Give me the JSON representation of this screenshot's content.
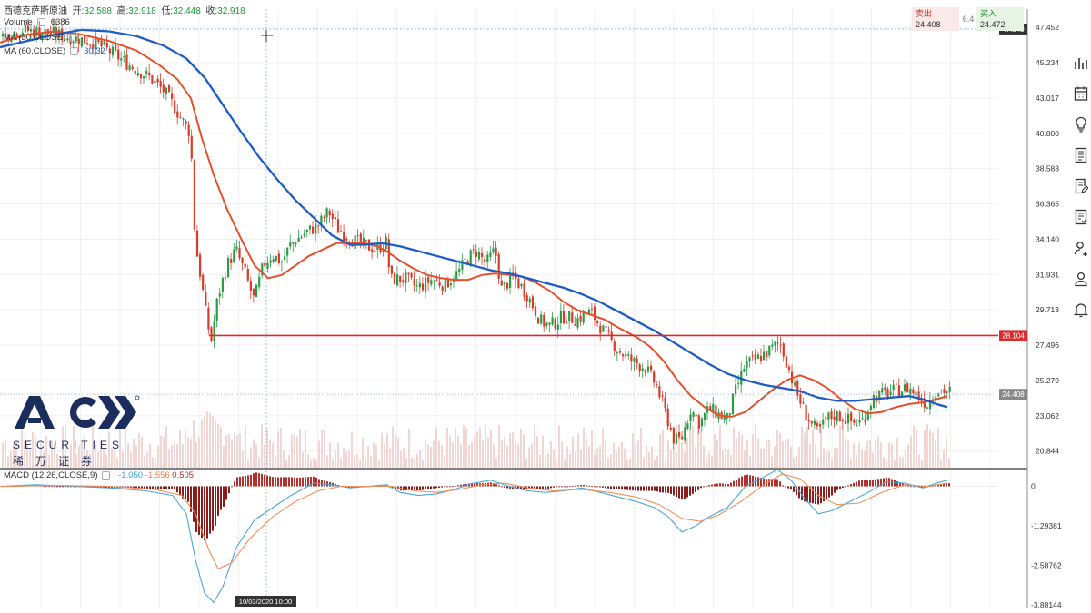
{
  "instrument": {
    "name": "西德克萨斯原油",
    "open_label": "开:",
    "open": "32.588",
    "high_label": "高:",
    "high": "32.918",
    "low_label": "低:",
    "low": "32.448",
    "close_label": "收:",
    "close": "32.918"
  },
  "legends": {
    "volume_label": "Volume",
    "volume_value": "6386",
    "ma1_label": "MA (30,CLOSE)",
    "ma1_value": "",
    "ma2_label": "MA (60,CLOSE)",
    "ma2_value": "30.32",
    "macd_label": "MACD (12,26,CLOSE,9)",
    "macd_v1": "-1.050",
    "macd_v2": "-1.556",
    "macd_v3": "0.505"
  },
  "trade": {
    "sell_label": "卖出",
    "sell_price": "24.408",
    "spread": "6.4",
    "buy_label": "买入",
    "buy_price": "24.472"
  },
  "logo": {
    "brand": "ACY",
    "securities": "SECURITIES",
    "chinese": "稀万证券"
  },
  "toolbar": [
    "bar-chart-icon",
    "calendar-icon",
    "lightbulb-icon",
    "document-icon",
    "edit-document-icon",
    "checklist-icon",
    "user-settings-icon",
    "user-icon",
    "bell-icon"
  ],
  "colors": {
    "up": "#2a9d43",
    "down": "#d93a2a",
    "ma_fast": "#e4502b",
    "ma_slow": "#1c5cc4",
    "support": "#d92b2b",
    "macd_fast": "#4aa6d9",
    "macd_slow": "#f0905a",
    "hist_up": "#b5302a",
    "hist_down": "#8c1c1c",
    "volume": "#f1d6d4"
  },
  "chart_data": {
    "type": "candlestick",
    "price_axis_ticks": [
      "47.452",
      "45.234",
      "43.017",
      "40.800",
      "38.583",
      "36.365",
      "34.140",
      "31.931",
      "29.713",
      "27.496",
      "25.279",
      "23.062",
      "20.844"
    ],
    "price_range": [
      19.8,
      48.6
    ],
    "crosshair_price": "47.349",
    "crosshair_time": "10/03/2020  10:00",
    "support_level": 28.104,
    "support_label": "28.104",
    "current_price": 24.408,
    "current_label": "24.408",
    "macd_axis_ticks": [
      "0",
      "-1.29381",
      "-2.58762",
      "-3.88144"
    ],
    "macd_range": [
      -4.0,
      0.55
    ],
    "price_path": [
      [
        0,
        46.9
      ],
      [
        25,
        47.3
      ],
      [
        55,
        47.1
      ],
      [
        80,
        46.8
      ],
      [
        105,
        46.5
      ],
      [
        125,
        45.8
      ],
      [
        145,
        45.0
      ],
      [
        165,
        44.3
      ],
      [
        180,
        43.5
      ],
      [
        192,
        42.5
      ],
      [
        202,
        41.5
      ],
      [
        210,
        40.8
      ],
      [
        215,
        34.0
      ],
      [
        222,
        31.5
      ],
      [
        228,
        29.0
      ],
      [
        233,
        27.8
      ],
      [
        240,
        30.5
      ],
      [
        250,
        32.5
      ],
      [
        260,
        33.5
      ],
      [
        270,
        32.0
      ],
      [
        280,
        30.3
      ],
      [
        290,
        32.5
      ],
      [
        300,
        33.2
      ],
      [
        310,
        32.7
      ],
      [
        320,
        33.8
      ],
      [
        335,
        34.5
      ],
      [
        350,
        35.0
      ],
      [
        362,
        35.9
      ],
      [
        372,
        34.8
      ],
      [
        385,
        34.2
      ],
      [
        400,
        33.8
      ],
      [
        415,
        33.5
      ],
      [
        425,
        34.0
      ],
      [
        430,
        31.6
      ],
      [
        445,
        31.7
      ],
      [
        460,
        31.1
      ],
      [
        475,
        31.6
      ],
      [
        490,
        31.3
      ],
      [
        505,
        32.1
      ],
      [
        515,
        33.0
      ],
      [
        525,
        33.4
      ],
      [
        535,
        32.6
      ],
      [
        545,
        33.5
      ],
      [
        552,
        31.0
      ],
      [
        565,
        31.8
      ],
      [
        580,
        30.7
      ],
      [
        595,
        29.0
      ],
      [
        605,
        28.7
      ],
      [
        620,
        29.3
      ],
      [
        635,
        29.1
      ],
      [
        650,
        29.6
      ],
      [
        665,
        28.3
      ],
      [
        680,
        27.2
      ],
      [
        695,
        26.5
      ],
      [
        710,
        26.1
      ],
      [
        722,
        25.0
      ],
      [
        732,
        23.3
      ],
      [
        742,
        21.5
      ],
      [
        750,
        21.6
      ],
      [
        760,
        23.5
      ],
      [
        770,
        22.6
      ],
      [
        780,
        23.5
      ],
      [
        790,
        23.2
      ],
      [
        800,
        22.8
      ],
      [
        810,
        24.7
      ],
      [
        820,
        26.3
      ],
      [
        830,
        26.5
      ],
      [
        840,
        26.9
      ],
      [
        850,
        27.3
      ],
      [
        858,
        27.7
      ],
      [
        866,
        26.4
      ],
      [
        875,
        24.7
      ],
      [
        885,
        23.4
      ],
      [
        892,
        22.6
      ],
      [
        900,
        22.0
      ],
      [
        910,
        22.9
      ],
      [
        920,
        23.1
      ],
      [
        930,
        22.9
      ],
      [
        940,
        22.6
      ],
      [
        950,
        22.8
      ],
      [
        960,
        24.2
      ],
      [
        975,
        24.5
      ],
      [
        990,
        24.7
      ],
      [
        1000,
        24.8
      ],
      [
        1010,
        24.3
      ],
      [
        1020,
        23.8
      ],
      [
        1030,
        24.7
      ],
      [
        1042,
        24.6
      ]
    ],
    "ma_fast_path": [
      [
        0,
        46.5
      ],
      [
        30,
        47.0
      ],
      [
        60,
        47.2
      ],
      [
        90,
        47.0
      ],
      [
        120,
        46.6
      ],
      [
        150,
        46.0
      ],
      [
        175,
        45.1
      ],
      [
        195,
        44.2
      ],
      [
        210,
        43.0
      ],
      [
        222,
        40.5
      ],
      [
        235,
        38.2
      ],
      [
        250,
        36.0
      ],
      [
        265,
        34.2
      ],
      [
        280,
        32.5
      ],
      [
        295,
        31.7
      ],
      [
        310,
        31.9
      ],
      [
        325,
        32.5
      ],
      [
        340,
        33.1
      ],
      [
        355,
        33.5
      ],
      [
        370,
        33.9
      ],
      [
        385,
        33.9
      ],
      [
        400,
        33.9
      ],
      [
        415,
        33.7
      ],
      [
        425,
        33.4
      ],
      [
        440,
        32.8
      ],
      [
        455,
        32.3
      ],
      [
        470,
        31.9
      ],
      [
        485,
        31.7
      ],
      [
        500,
        31.6
      ],
      [
        515,
        31.6
      ],
      [
        530,
        31.9
      ],
      [
        545,
        32.0
      ],
      [
        560,
        31.9
      ],
      [
        575,
        31.8
      ],
      [
        590,
        31.4
      ],
      [
        605,
        30.9
      ],
      [
        620,
        30.2
      ],
      [
        635,
        29.7
      ],
      [
        650,
        29.4
      ],
      [
        665,
        29.1
      ],
      [
        680,
        28.6
      ],
      [
        700,
        28.0
      ],
      [
        715,
        27.4
      ],
      [
        730,
        26.5
      ],
      [
        745,
        25.3
      ],
      [
        760,
        24.3
      ],
      [
        775,
        23.6
      ],
      [
        790,
        23.1
      ],
      [
        805,
        23.0
      ],
      [
        820,
        23.3
      ],
      [
        835,
        24.0
      ],
      [
        850,
        24.7
      ],
      [
        865,
        25.3
      ],
      [
        880,
        25.6
      ],
      [
        895,
        25.3
      ],
      [
        910,
        24.8
      ],
      [
        925,
        24.1
      ],
      [
        940,
        23.5
      ],
      [
        955,
        23.2
      ],
      [
        970,
        23.3
      ],
      [
        985,
        23.6
      ],
      [
        1000,
        23.8
      ],
      [
        1015,
        23.9
      ],
      [
        1030,
        24.1
      ],
      [
        1042,
        24.3
      ]
    ],
    "ma_slow_path": [
      [
        0,
        46.2
      ],
      [
        30,
        46.6
      ],
      [
        60,
        47.0
      ],
      [
        90,
        47.3
      ],
      [
        120,
        47.2
      ],
      [
        150,
        46.9
      ],
      [
        180,
        46.3
      ],
      [
        205,
        45.5
      ],
      [
        225,
        44.3
      ],
      [
        245,
        42.6
      ],
      [
        265,
        40.9
      ],
      [
        285,
        39.3
      ],
      [
        305,
        37.9
      ],
      [
        325,
        36.6
      ],
      [
        345,
        35.5
      ],
      [
        365,
        34.4
      ],
      [
        385,
        33.8
      ],
      [
        400,
        33.8
      ],
      [
        420,
        33.9
      ],
      [
        440,
        33.7
      ],
      [
        460,
        33.4
      ],
      [
        480,
        33.1
      ],
      [
        500,
        32.8
      ],
      [
        520,
        32.5
      ],
      [
        540,
        32.2
      ],
      [
        560,
        32.0
      ],
      [
        580,
        31.7
      ],
      [
        600,
        31.4
      ],
      [
        620,
        31.1
      ],
      [
        640,
        30.7
      ],
      [
        660,
        30.2
      ],
      [
        680,
        29.6
      ],
      [
        700,
        29.0
      ],
      [
        720,
        28.4
      ],
      [
        740,
        27.7
      ],
      [
        760,
        27.0
      ],
      [
        780,
        26.3
      ],
      [
        800,
        25.7
      ],
      [
        820,
        25.3
      ],
      [
        840,
        25.0
      ],
      [
        860,
        24.8
      ],
      [
        880,
        24.6
      ],
      [
        900,
        24.2
      ],
      [
        920,
        24.0
      ],
      [
        940,
        24.0
      ],
      [
        960,
        24.1
      ],
      [
        980,
        24.2
      ],
      [
        1000,
        24.3
      ],
      [
        1015,
        24.1
      ],
      [
        1030,
        23.8
      ],
      [
        1042,
        23.6
      ]
    ],
    "macd_line_path": [
      [
        0,
        0.0
      ],
      [
        40,
        0.05
      ],
      [
        80,
        0.0
      ],
      [
        120,
        -0.05
      ],
      [
        160,
        -0.15
      ],
      [
        190,
        -0.3
      ],
      [
        205,
        -0.9
      ],
      [
        215,
        -2.4
      ],
      [
        225,
        -3.5
      ],
      [
        235,
        -3.8
      ],
      [
        245,
        -3.3
      ],
      [
        260,
        -2.0
      ],
      [
        280,
        -1.1
      ],
      [
        300,
        -0.7
      ],
      [
        320,
        -0.3
      ],
      [
        345,
        0.1
      ],
      [
        365,
        0.05
      ],
      [
        385,
        -0.05
      ],
      [
        405,
        0.0
      ],
      [
        425,
        0.05
      ],
      [
        440,
        -0.2
      ],
      [
        460,
        -0.3
      ],
      [
        480,
        -0.25
      ],
      [
        500,
        -0.1
      ],
      [
        520,
        0.1
      ],
      [
        540,
        0.2
      ],
      [
        560,
        0.0
      ],
      [
        580,
        -0.15
      ],
      [
        600,
        -0.2
      ],
      [
        620,
        -0.15
      ],
      [
        640,
        -0.05
      ],
      [
        660,
        -0.2
      ],
      [
        680,
        -0.35
      ],
      [
        700,
        -0.5
      ],
      [
        720,
        -0.7
      ],
      [
        735,
        -1.0
      ],
      [
        750,
        -1.5
      ],
      [
        765,
        -1.3
      ],
      [
        780,
        -1.0
      ],
      [
        800,
        -0.7
      ],
      [
        820,
        0.0
      ],
      [
        840,
        0.3
      ],
      [
        855,
        0.55
      ],
      [
        870,
        0.2
      ],
      [
        885,
        -0.4
      ],
      [
        900,
        -0.9
      ],
      [
        915,
        -0.8
      ],
      [
        935,
        -0.5
      ],
      [
        955,
        -0.2
      ],
      [
        975,
        0.15
      ],
      [
        995,
        0.1
      ],
      [
        1015,
        -0.05
      ],
      [
        1030,
        0.1
      ],
      [
        1042,
        0.2
      ]
    ],
    "macd_signal_path": [
      [
        0,
        0.0
      ],
      [
        60,
        0.03
      ],
      [
        120,
        0.0
      ],
      [
        170,
        -0.1
      ],
      [
        200,
        -0.3
      ],
      [
        215,
        -0.9
      ],
      [
        230,
        -2.1
      ],
      [
        240,
        -2.7
      ],
      [
        255,
        -2.5
      ],
      [
        275,
        -1.7
      ],
      [
        300,
        -1.0
      ],
      [
        325,
        -0.5
      ],
      [
        350,
        -0.15
      ],
      [
        375,
        0.0
      ],
      [
        400,
        0.0
      ],
      [
        430,
        0.0
      ],
      [
        455,
        -0.15
      ],
      [
        480,
        -0.2
      ],
      [
        505,
        -0.1
      ],
      [
        530,
        0.05
      ],
      [
        555,
        0.1
      ],
      [
        580,
        -0.05
      ],
      [
        610,
        -0.15
      ],
      [
        640,
        -0.1
      ],
      [
        670,
        -0.2
      ],
      [
        700,
        -0.35
      ],
      [
        725,
        -0.6
      ],
      [
        750,
        -1.05
      ],
      [
        770,
        -1.15
      ],
      [
        790,
        -0.95
      ],
      [
        815,
        -0.5
      ],
      [
        840,
        0.05
      ],
      [
        860,
        0.4
      ],
      [
        880,
        0.25
      ],
      [
        900,
        -0.3
      ],
      [
        920,
        -0.6
      ],
      [
        945,
        -0.55
      ],
      [
        970,
        -0.2
      ],
      [
        995,
        0.05
      ],
      [
        1020,
        0.0
      ],
      [
        1042,
        0.1
      ]
    ]
  }
}
